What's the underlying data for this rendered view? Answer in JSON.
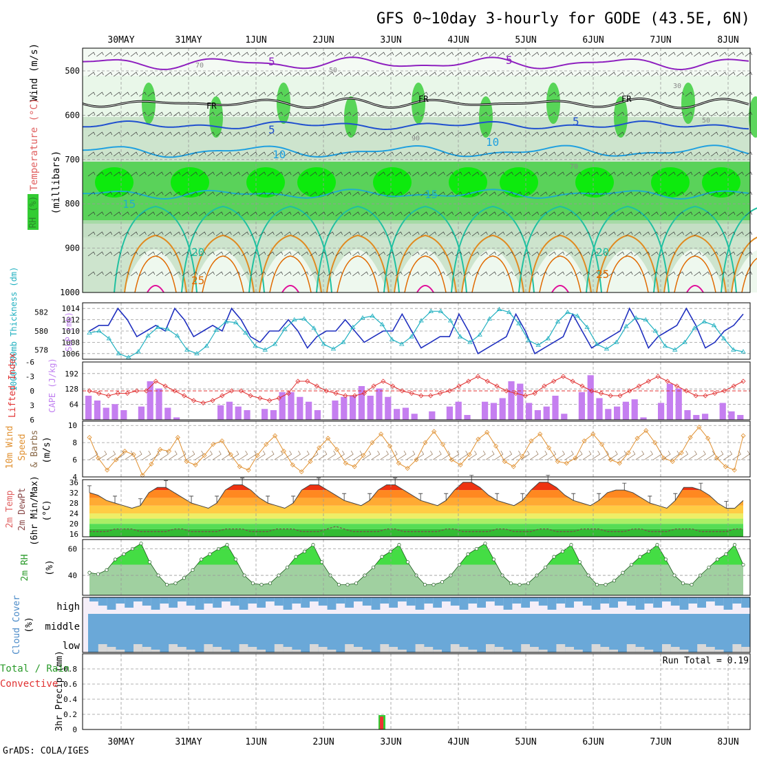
{
  "title": "GFS 0~10day 3-hourly for GODE (43.5E, 6N)",
  "footer": "GrADS: COLA/IGES",
  "dates": [
    "30MAY",
    "31MAY",
    "1JUN",
    "2JUN",
    "3JUN",
    "4JUN",
    "5JUN",
    "6JUN",
    "7JUN",
    "8JUN"
  ],
  "colors": {
    "axis": "#000000",
    "grid": "#999999",
    "rh_light": "#e6f5e6",
    "rh_mid": "#c0dcc0",
    "rh_dark": "#8fbf8f",
    "rh_green": "#33cc33",
    "rh_bright": "#00ee00",
    "temp_purple": "#8e1fbf",
    "temp_blue": "#1f4fcf",
    "temp_lblue": "#1fa0e0",
    "temp_teal": "#20c0a0",
    "temp_orange": "#e08a20",
    "temp_dorange": "#e06a00",
    "temp_magenta": "#e0109a",
    "slp": "#1f2fbf",
    "thick": "#20b0c0",
    "cape": "#c57ff0",
    "li": "#e03030",
    "wind": "#e09030",
    "barb": "#8a6a4a",
    "rh2m": "#44dd44",
    "rh2m_low": "#a0d0a0",
    "cloud": "#6aa8d8",
    "cloud_bg": "#f4eef8",
    "cloud_gray": "#d8d8d8"
  },
  "panels": {
    "profile": {
      "ylabel": "(millibars)",
      "yticks": [
        "500",
        "600",
        "700",
        "800",
        "900",
        "1000"
      ],
      "labels": {
        "wind": "Wind (m/s)",
        "temp": "Temperature (°C)",
        "rh": "RH (%)"
      },
      "contour_labels": [
        "5",
        "FR",
        "5",
        "10",
        "15",
        "20",
        "25",
        "30",
        "50",
        "70",
        "90"
      ]
    },
    "slp": {
      "left_label": "1000~500mb Thickness (dm)",
      "right_label": "SLP (mb)",
      "left_ticks": [
        "582",
        "580",
        "578"
      ],
      "right_ticks": [
        "1014",
        "1012",
        "1010",
        "1008",
        "1006"
      ]
    },
    "cape": {
      "left_label": "Lifted Index",
      "right_label": "CAPE (J/kg)",
      "li_ticks": [
        "-6",
        "-3",
        "0",
        "3",
        "6"
      ],
      "cape_ticks": [
        "192",
        "128",
        "64"
      ]
    },
    "wind": {
      "labels": [
        "10m Wind",
        "Speed",
        "& Barbs",
        "(m/s)"
      ],
      "ticks": [
        "10",
        "8",
        "6",
        "4"
      ]
    },
    "temp2m": {
      "labels": [
        "2m Temp",
        "2m DewPt",
        "(6hr Min/Max)",
        "(°C)"
      ],
      "ticks": [
        "36",
        "32",
        "28",
        "24",
        "20",
        "16"
      ]
    },
    "rh2m": {
      "labels": [
        "2m RH",
        "(%)"
      ],
      "ticks": [
        "60",
        "40"
      ]
    },
    "cloud": {
      "labels": [
        "Cloud Cover",
        "(%)"
      ],
      "levels": [
        "high",
        "middle",
        "low"
      ]
    },
    "precip": {
      "labels": [
        "3hr Precip (mm)",
        "Total / Rain",
        "Convective"
      ],
      "ticks": [
        "0.8",
        "0.6",
        "0.4",
        "0.2",
        "0"
      ],
      "run_total": "Run Total = 0.19"
    }
  },
  "chart_data": [
    {
      "type": "line",
      "title": "SLP (mb)",
      "series": [
        {
          "name": "SLP (mb)",
          "values": [
            1010,
            1011,
            1011,
            1014,
            1012,
            1009,
            1010,
            1011,
            1010,
            1014,
            1012,
            1009,
            1010,
            1011,
            1010,
            1014,
            1012,
            1009,
            1008,
            1010,
            1010,
            1012,
            1010,
            1007,
            1009,
            1010,
            1010,
            1012,
            1010,
            1008,
            1009,
            1010,
            1010,
            1013,
            1010,
            1007,
            1008,
            1009,
            1009,
            1013,
            1010,
            1006,
            1007,
            1008,
            1009,
            1013,
            1010,
            1006,
            1007,
            1008,
            1009,
            1013,
            1010,
            1007,
            1008,
            1009,
            1010,
            1014,
            1011,
            1007,
            1009,
            1010,
            1011,
            1014,
            1011,
            1007,
            1008,
            1010,
            1011,
            1013
          ]
        }
      ],
      "ylim": [
        1005,
        1015
      ]
    },
    {
      "type": "line",
      "title": "1000~500mb Thickness (dm)",
      "series": [
        {
          "name": "1000~500mb Thickness (dm)",
          "values": [
            579.8,
            580.0,
            579.2,
            577.6,
            577.2,
            577.8,
            579.5,
            580.4,
            580.2,
            579.5,
            578.0,
            577.6,
            578.4,
            580.1,
            581.0,
            580.9,
            579.8,
            578.4,
            578.0,
            578.6,
            580.2,
            581.2,
            581.3,
            580.3,
            578.6,
            578.1,
            578.8,
            580.4,
            581.4,
            581.6,
            580.7,
            579.1,
            578.6,
            579.4,
            581.1,
            582.1,
            582.1,
            581.1,
            579.4,
            578.8,
            579.6,
            581.3,
            582.3,
            582.0,
            580.8,
            579.0,
            578.5,
            579.2,
            581.0,
            582.0,
            581.6,
            580.4,
            578.6,
            578.1,
            578.8,
            580.5,
            581.4,
            581.2,
            580.0,
            578.4,
            578.0,
            578.8,
            580.3,
            581.0,
            580.6,
            579.2,
            578.0,
            577.8
          ]
        }
      ],
      "ylim": [
        577,
        583
      ]
    },
    {
      "type": "bar",
      "title": "CAPE (J/kg)",
      "series": [
        {
          "name": "CAPE (J/kg)",
          "values": [
            100,
            80,
            50,
            65,
            40,
            0,
            55,
            160,
            130,
            50,
            10,
            0,
            0,
            0,
            0,
            60,
            75,
            55,
            40,
            0,
            45,
            40,
            115,
            115,
            95,
            75,
            40,
            0,
            80,
            95,
            100,
            140,
            100,
            130,
            95,
            45,
            50,
            25,
            0,
            35,
            0,
            55,
            75,
            20,
            0,
            75,
            70,
            90,
            160,
            150,
            70,
            40,
            55,
            100,
            25,
            0,
            115,
            185,
            90,
            45,
            55,
            75,
            85,
            10,
            0,
            70,
            150,
            130,
            40,
            20,
            25,
            0,
            70,
            35,
            20
          ]
        }
      ],
      "ylim": [
        0,
        240
      ]
    },
    {
      "type": "line",
      "title": "Lifted Index",
      "series": [
        {
          "name": "Lifted Index",
          "values": [
            0,
            0.5,
            1,
            0.5,
            0.5,
            0,
            0,
            -2,
            -1,
            0,
            1,
            2,
            2.5,
            2,
            1,
            0,
            0,
            1,
            1.5,
            2,
            1.5,
            0.5,
            -2,
            -2,
            -1,
            0,
            0.5,
            1,
            1,
            0.5,
            -1,
            -2,
            -1,
            0,
            0.5,
            1,
            1,
            0.5,
            0,
            -1,
            -2,
            -3,
            -2,
            -1,
            0,
            0.5,
            1,
            0.5,
            -1,
            -2,
            -3,
            -2,
            -1,
            0,
            0.5,
            1,
            1,
            0,
            -1,
            -2,
            -3,
            -2,
            -1,
            0,
            1,
            1,
            0.5,
            0,
            -1,
            -2
          ]
        }
      ],
      "ylim": [
        6,
        -6
      ]
    },
    {
      "type": "line",
      "title": "10m Wind Speed (m/s)",
      "series": [
        {
          "name": "10m Wind Speed",
          "values": [
            8.6,
            6.2,
            4.8,
            6.0,
            7.0,
            6.6,
            4.2,
            5.5,
            7.2,
            7.0,
            8.6,
            5.8,
            5.4,
            6.5,
            7.8,
            8.2,
            6.6,
            5.2,
            4.8,
            6.5,
            7.8,
            8.8,
            7.0,
            5.4,
            4.6,
            5.8,
            7.4,
            8.5,
            7.2,
            5.6,
            5.2,
            6.5,
            8.0,
            9.0,
            7.6,
            5.6,
            5.0,
            6.0,
            8.0,
            9.3,
            7.8,
            6.0,
            5.4,
            6.6,
            8.4,
            9.2,
            7.6,
            5.8,
            5.2,
            6.4,
            8.2,
            9.0,
            7.4,
            5.8,
            5.6,
            6.2,
            8.2,
            9.0,
            7.8,
            6.0,
            5.6,
            6.8,
            8.5,
            9.4,
            8.0,
            6.2,
            5.8,
            6.8,
            8.6,
            9.8,
            8.5,
            6.2,
            5.2,
            4.8,
            8.8
          ]
        }
      ],
      "ylim": [
        4,
        10.5
      ]
    },
    {
      "type": "area",
      "title": "2m Temp (°C)",
      "series": [
        {
          "name": "2m Temp",
          "values": [
            32,
            31,
            29,
            28,
            27,
            26,
            27,
            32,
            34,
            34,
            32,
            30,
            28,
            27,
            26,
            28,
            33,
            35,
            35,
            33,
            30,
            28,
            27,
            26,
            28,
            33,
            35,
            35,
            33,
            31,
            29,
            28,
            27,
            29,
            33,
            35,
            35,
            33,
            31,
            29,
            28,
            27,
            29,
            33,
            36,
            36,
            34,
            31,
            29,
            28,
            27,
            29,
            33,
            36,
            36,
            34,
            31,
            29,
            28,
            27,
            29,
            32,
            33,
            33,
            32,
            30,
            28,
            27,
            26,
            29,
            34,
            34,
            33,
            31,
            28,
            26,
            26,
            29
          ]
        },
        {
          "name": "2m DewPt",
          "values": [
            17,
            17,
            17,
            18,
            18,
            18,
            17,
            17,
            17,
            17,
            18,
            18,
            17,
            17,
            17,
            17,
            18,
            18,
            18,
            17,
            17,
            17,
            18,
            18,
            18,
            17,
            17,
            17,
            18,
            19,
            18,
            17,
            17,
            17,
            17,
            18,
            18,
            17,
            17,
            17,
            17,
            17,
            18,
            18,
            17,
            17,
            17,
            17,
            18,
            18,
            17,
            17,
            17,
            18,
            18,
            17,
            17,
            17,
            18,
            18,
            18,
            17,
            17,
            17,
            18,
            18,
            17,
            17,
            17,
            18,
            18,
            18,
            17,
            17,
            17,
            17,
            18,
            18
          ]
        }
      ],
      "ylim": [
        15,
        37
      ]
    },
    {
      "type": "area",
      "title": "2m RH (%)",
      "series": [
        {
          "name": "2m RH (%)",
          "values": [
            42,
            41,
            44,
            52,
            56,
            60,
            64,
            50,
            40,
            33,
            34,
            38,
            44,
            52,
            56,
            60,
            63,
            52,
            40,
            34,
            33,
            34,
            40,
            46,
            54,
            58,
            63,
            50,
            40,
            33,
            33,
            34,
            40,
            46,
            54,
            58,
            63,
            50,
            40,
            33,
            33,
            35,
            40,
            48,
            56,
            60,
            64,
            52,
            40,
            34,
            33,
            34,
            40,
            46,
            54,
            58,
            63,
            50,
            40,
            33,
            33,
            36,
            42,
            48,
            54,
            58,
            63,
            52,
            40,
            34,
            33,
            40,
            46,
            52,
            56,
            63,
            48
          ]
        }
      ],
      "ylim": [
        25,
        67
      ]
    },
    {
      "type": "bar",
      "title": "3hr Precip (mm)",
      "categories": [
        "2JUN 18Z"
      ],
      "series": [
        {
          "name": "Total / Rain",
          "values": [
            0.19
          ]
        },
        {
          "name": "Convective",
          "values": [
            0.17
          ]
        }
      ],
      "ylim": [
        0,
        1
      ]
    }
  ]
}
